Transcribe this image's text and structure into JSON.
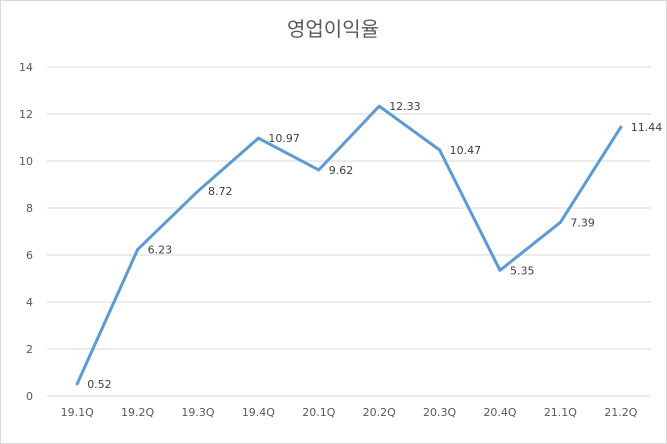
{
  "chart_data": {
    "type": "line",
    "title": "영업이익율",
    "xlabel": "",
    "ylabel": "",
    "categories": [
      "19.1Q",
      "19.2Q",
      "19.3Q",
      "19.4Q",
      "20.1Q",
      "20.2Q",
      "20.3Q",
      "20.4Q",
      "21.1Q",
      "21.2Q"
    ],
    "series": [
      {
        "values": [
          0.52,
          6.23,
          8.72,
          10.97,
          9.62,
          12.33,
          10.47,
          5.35,
          7.39,
          11.44
        ],
        "labels": [
          "0.52",
          "6.23",
          "8.72",
          "10.97",
          "9.62",
          "12.33",
          "10.47",
          "5.35",
          "7.39",
          "11.44"
        ],
        "color": "#5b9bd5"
      }
    ],
    "ylim": [
      0,
      14
    ],
    "yticks": [
      "0",
      "2",
      "4",
      "6",
      "8",
      "10",
      "12",
      "14"
    ],
    "grid": true,
    "gridColor": "#d9d9d9",
    "legend": "none"
  }
}
